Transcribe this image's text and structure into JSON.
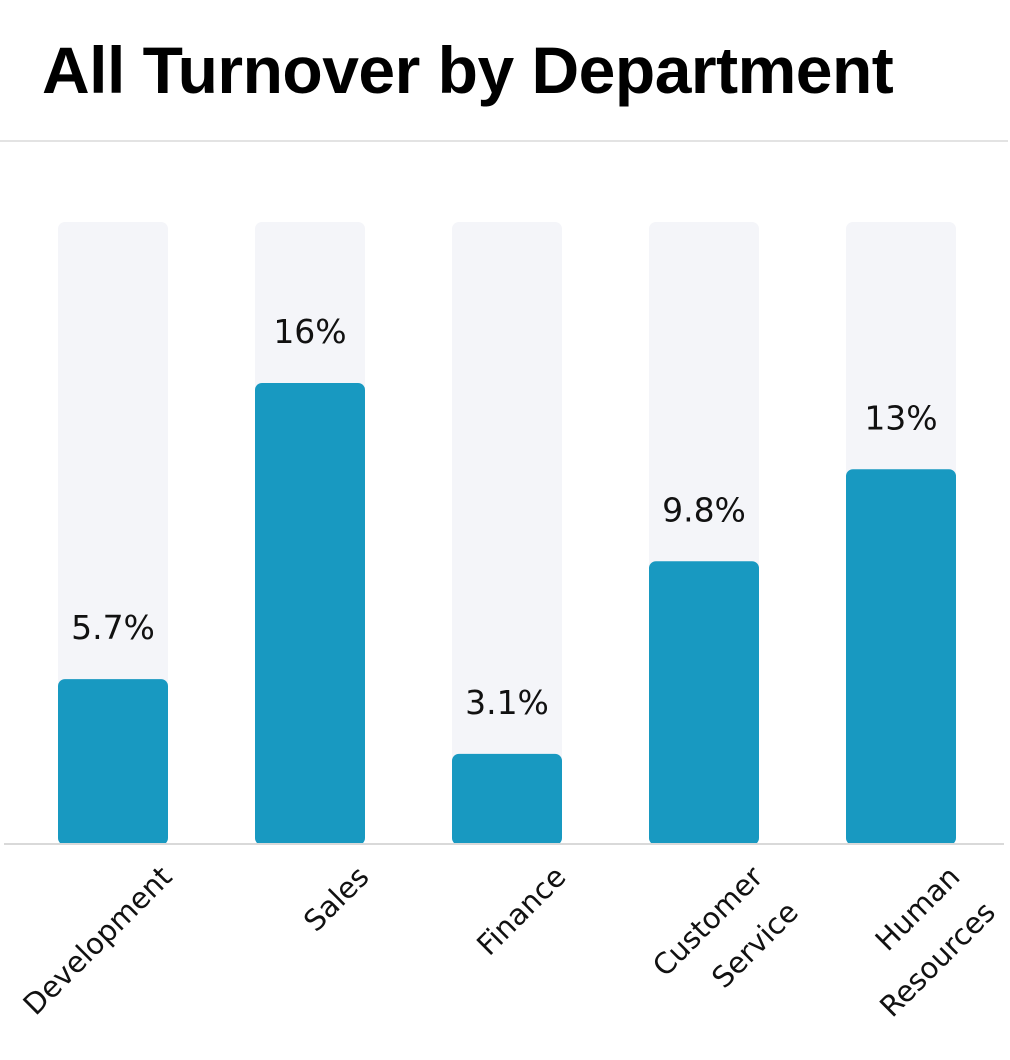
{
  "chart_data": {
    "type": "bar",
    "title": "All Turnover by Department",
    "categories": [
      [
        "Development"
      ],
      [
        "Sales"
      ],
      [
        "Finance"
      ],
      [
        "Customer",
        "Service"
      ],
      [
        "Human",
        "Resources"
      ]
    ],
    "values": [
      5.7,
      16,
      3.1,
      9.8,
      13
    ],
    "value_labels": [
      "5.7%",
      "16%",
      "3.1%",
      "9.8%",
      "13%"
    ],
    "ylim": [
      0,
      21.6
    ],
    "grid": false,
    "colors": {
      "bar": "#1899c1",
      "track": "#f4f5f9",
      "baseline": "#d9d9d9"
    }
  }
}
